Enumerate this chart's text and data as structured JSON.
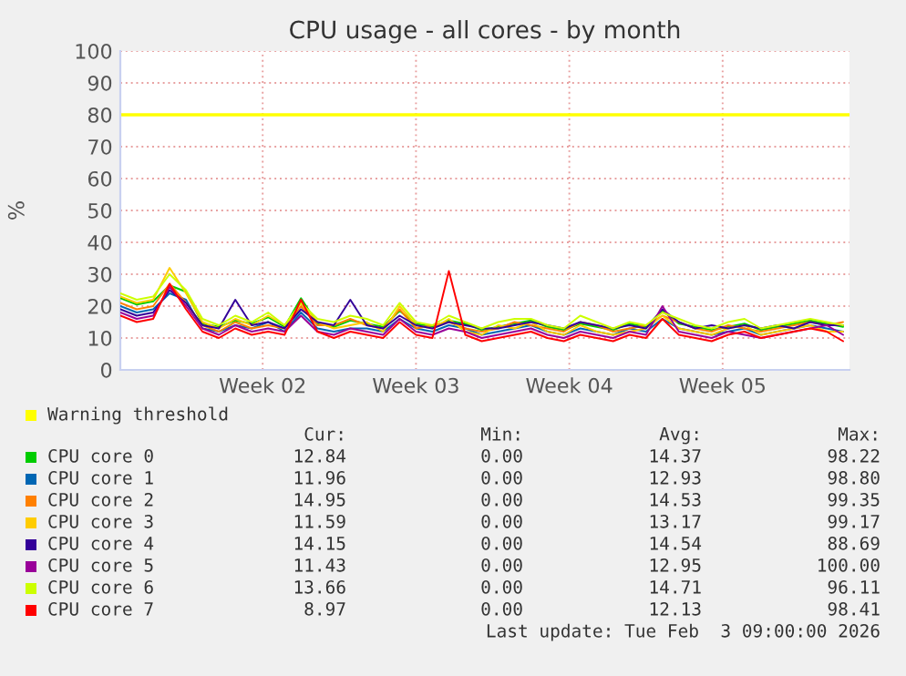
{
  "chart_data": {
    "type": "line",
    "title": "CPU usage - all cores - by month",
    "ylabel": "%",
    "x": [
      "2026-01-02T00:00",
      "2026-01-02T18:00",
      "2026-01-03T12:00",
      "2026-01-04T06:00",
      "2026-01-05T00:00",
      "2026-01-05T18:00",
      "2026-01-06T12:00",
      "2026-01-07T06:00",
      "2026-01-08T00:00",
      "2026-01-08T18:00",
      "2026-01-09T12:00",
      "2026-01-10T06:00",
      "2026-01-11T00:00",
      "2026-01-11T18:00",
      "2026-01-12T12:00",
      "2026-01-13T06:00",
      "2026-01-14T00:00",
      "2026-01-14T18:00",
      "2026-01-15T12:00",
      "2026-01-16T06:00",
      "2026-01-17T00:00",
      "2026-01-17T18:00",
      "2026-01-18T12:00",
      "2026-01-19T06:00",
      "2026-01-20T00:00",
      "2026-01-20T18:00",
      "2026-01-21T12:00",
      "2026-01-22T06:00",
      "2026-01-23T00:00",
      "2026-01-23T18:00",
      "2026-01-24T12:00",
      "2026-01-25T06:00",
      "2026-01-26T00:00",
      "2026-01-26T18:00",
      "2026-01-27T12:00",
      "2026-01-28T06:00",
      "2026-01-29T00:00",
      "2026-01-29T18:00",
      "2026-01-30T12:00",
      "2026-01-31T06:00",
      "2026-02-01T00:00",
      "2026-02-01T18:00",
      "2026-02-02T12:00",
      "2026-02-03T06:00",
      "2026-02-04T00:00"
    ],
    "xlim": [
      "2026-01-02T00:00",
      "2026-02-04T07:00"
    ],
    "xticks": [
      {
        "value": "2026-01-08T12:00",
        "label": "Week 02"
      },
      {
        "value": "2026-01-15T12:00",
        "label": "Week 03"
      },
      {
        "value": "2026-01-22T12:00",
        "label": "Week 04"
      },
      {
        "value": "2026-01-29T12:00",
        "label": "Week 05"
      }
    ],
    "ylim": [
      0,
      100
    ],
    "yticks": [
      0,
      10,
      20,
      30,
      40,
      50,
      60,
      70,
      80,
      90,
      100
    ],
    "grid": true,
    "legend": "bottom",
    "ref_lines": [
      {
        "axis": "y",
        "value": 80,
        "label": "Warning threshold",
        "color": "#ffff00"
      }
    ],
    "series": [
      {
        "name": "CPU core 0",
        "color": "#00cc00",
        "values": [
          22.5,
          20.5,
          21.5,
          26.5,
          24.5,
          14.5,
          13.5,
          15.5,
          14.5,
          16.5,
          13.5,
          22.5,
          14.5,
          13.5,
          15.5,
          14.5,
          13.5,
          18.5,
          14.5,
          13.5,
          15.5,
          14.5,
          12.5,
          13.5,
          14.5,
          15.5,
          13.5,
          12.5,
          14.5,
          13.5,
          12.5,
          14.5,
          13.5,
          18.5,
          14.5,
          13.5,
          12.5,
          13.5,
          14.5,
          12.5,
          13.5,
          14.5,
          15.5,
          14.5,
          13.5
        ]
      },
      {
        "name": "CPU core 1",
        "color": "#0066b3",
        "values": [
          20,
          18,
          19,
          24,
          22,
          13,
          12,
          14,
          13,
          15,
          12,
          18,
          13,
          12,
          13,
          13,
          12,
          16,
          13,
          12,
          14,
          13,
          11,
          12,
          13,
          14,
          12,
          11,
          13,
          12,
          11,
          13,
          12,
          16,
          13,
          12,
          11,
          12,
          13,
          11,
          12,
          13,
          14,
          13,
          12
        ]
      },
      {
        "name": "CPU core 2",
        "color": "#ff8000",
        "values": [
          21,
          19,
          20,
          27,
          21,
          14,
          12,
          15,
          13,
          14,
          13,
          20,
          14,
          14,
          16,
          14,
          13,
          19,
          13,
          14,
          15,
          13,
          12,
          13,
          15,
          14,
          13,
          12,
          15,
          14,
          12,
          13,
          14,
          17,
          15,
          13,
          12,
          14,
          13,
          12,
          13,
          14,
          15,
          14,
          15
        ]
      },
      {
        "name": "CPU core 3",
        "color": "#ffcc00",
        "values": [
          23,
          21,
          22,
          32,
          24,
          15,
          13,
          16,
          14,
          17,
          14,
          21,
          15,
          13,
          14,
          15,
          12,
          20,
          14,
          13,
          16,
          12,
          11,
          14,
          13,
          15,
          12,
          11,
          14,
          12,
          11,
          12,
          13,
          17,
          13,
          12,
          11,
          13,
          14,
          11,
          12,
          13,
          14,
          12,
          12
        ]
      },
      {
        "name": "CPU core 4",
        "color": "#330099",
        "values": [
          19,
          17,
          18,
          25,
          21,
          14,
          13,
          22,
          14,
          15,
          13,
          19,
          15,
          14,
          22,
          14,
          13,
          17,
          14,
          13,
          15,
          14,
          13,
          13,
          14,
          15,
          14,
          13,
          15,
          14,
          13,
          14,
          13,
          19,
          15,
          13,
          14,
          13,
          14,
          13,
          14,
          13,
          15,
          14,
          14
        ]
      },
      {
        "name": "CPU core 5",
        "color": "#990099",
        "values": [
          18,
          16,
          17,
          26,
          20,
          13,
          11,
          14,
          12,
          13,
          12,
          17,
          12,
          11,
          13,
          12,
          11,
          16,
          12,
          11,
          13,
          12,
          10,
          11,
          12,
          13,
          11,
          10,
          12,
          11,
          10,
          12,
          11,
          20,
          12,
          11,
          10,
          12,
          11,
          10,
          11,
          12,
          13,
          14,
          11
        ]
      },
      {
        "name": "CPU core 6",
        "color": "#ccff00",
        "values": [
          24,
          22,
          23,
          30,
          25,
          16,
          14,
          17,
          15,
          18,
          14,
          21,
          16,
          15,
          17,
          16,
          14,
          21,
          15,
          14,
          17,
          15,
          13,
          15,
          16,
          16,
          14,
          13,
          17,
          15,
          13,
          15,
          14,
          18,
          16,
          14,
          13,
          15,
          16,
          13,
          14,
          15,
          16,
          15,
          14
        ]
      },
      {
        "name": "CPU core 7",
        "color": "#ff0000",
        "values": [
          17,
          15,
          16,
          27,
          19,
          12,
          10,
          13,
          11,
          12,
          11,
          22,
          12,
          10,
          12,
          11,
          10,
          15,
          11,
          10,
          31,
          11,
          9,
          10,
          11,
          12,
          10,
          9,
          11,
          10,
          9,
          11,
          10,
          16,
          11,
          10,
          9,
          11,
          12,
          10,
          11,
          12,
          13,
          12,
          9
        ]
      }
    ],
    "annotations": [
      "Cur:",
      "Min:",
      "Avg:",
      "Max:",
      "12.84",
      "0.00",
      "14.37",
      "98.22",
      "11.96",
      "0.00",
      "12.93",
      "98.80",
      "14.95",
      "0.00",
      "14.53",
      "99.35",
      "11.59",
      "0.00",
      "13.17",
      "99.17",
      "14.15",
      "0.00",
      "14.54",
      "88.69",
      "11.43",
      "0.00",
      "12.95",
      "100.00",
      "13.66",
      "0.00",
      "14.71",
      "96.11",
      "8.97",
      "0.00",
      "12.13",
      "98.41",
      "Last update: Tue Feb  3 09:00:00 2026"
    ]
  }
}
